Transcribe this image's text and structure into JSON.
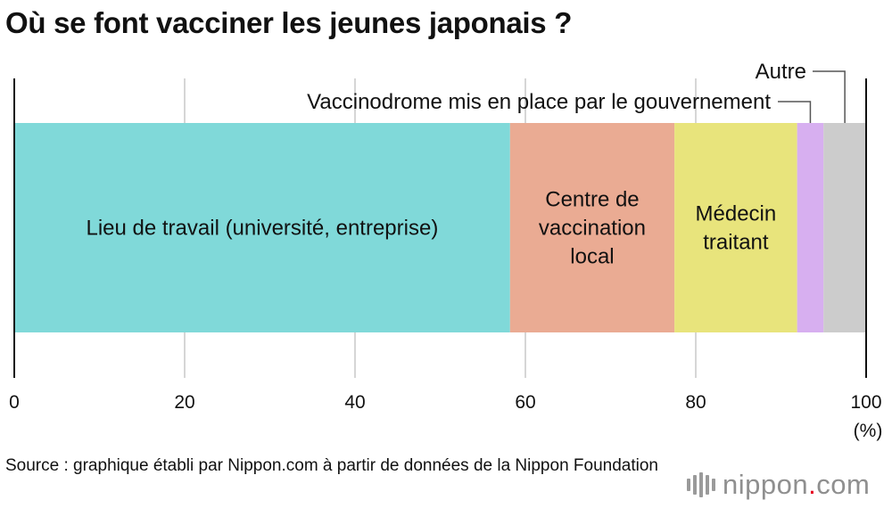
{
  "title": "Où se font vacciner les jeunes japonais ?",
  "source": "Source : graphique établi par Nippon.com à partir de données de la Nippon Foundation",
  "brand": {
    "name_left": "nippon",
    "dot": ".",
    "name_right": "com"
  },
  "colors": {
    "grid": "#c8c8c8",
    "axis": "#111111",
    "leader": "#555555"
  },
  "chart_data": {
    "type": "bar",
    "stacked": true,
    "orientation": "horizontal",
    "xlim": [
      0,
      100
    ],
    "x_ticks": [
      0,
      20,
      40,
      60,
      80,
      100
    ],
    "x_unit": "(%)",
    "grid": true,
    "series": [
      {
        "name": "Lieu de travail (université, entreprise)",
        "value": 58.2,
        "color": "#80d9d9",
        "label_lines": [
          "Lieu de travail (université, entreprise)"
        ]
      },
      {
        "name": "Centre de vaccination local",
        "value": 19.3,
        "color": "#eaab93",
        "label_lines": [
          "Centre de",
          "vaccination",
          "local"
        ]
      },
      {
        "name": "Médecin traitant",
        "value": 14.4,
        "color": "#e8e47c",
        "label_lines": [
          "Médecin",
          "traitant"
        ]
      },
      {
        "name": "Vaccinodrome mis en place par le gouvernement",
        "value": 3.1,
        "color": "#d7aff0",
        "label_lines": [
          "Vaccinodrome mis en place par le gouvernement"
        ]
      },
      {
        "name": "Autre",
        "value": 5.0,
        "color": "#cccccc",
        "label_lines": [
          "Autre"
        ]
      }
    ]
  }
}
